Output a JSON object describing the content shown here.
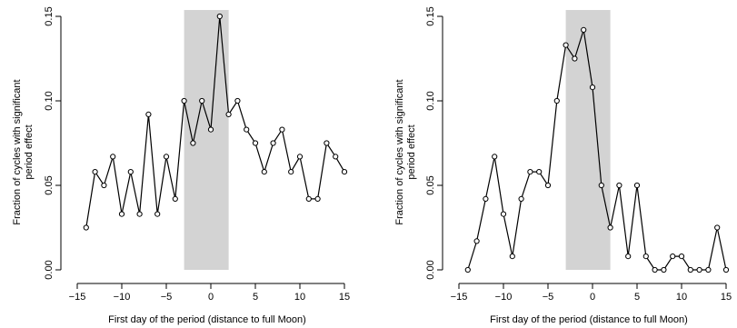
{
  "chart_data": [
    {
      "type": "line",
      "xlabel": "First day of the period (distance to full Moon)",
      "ylabel": [
        "Fraction of cycles with significant",
        "period effect"
      ],
      "xlim": [
        -15,
        15
      ],
      "ylim": [
        0,
        0.15
      ],
      "xticks": [
        -15,
        -10,
        -5,
        0,
        5,
        10,
        15
      ],
      "yticks": [
        0.0,
        0.05,
        0.1,
        0.15
      ],
      "ytick_labels": [
        "0.00",
        "0.05",
        "0.10",
        "0.15"
      ],
      "shaded_region": [
        -3,
        2
      ],
      "x": [
        -14,
        -13,
        -12,
        -11,
        -10,
        -9,
        -8,
        -7,
        -6,
        -5,
        -4,
        -3,
        -2,
        -1,
        0,
        1,
        2,
        3,
        4,
        5,
        6,
        7,
        8,
        9,
        10,
        11,
        12,
        13,
        14,
        15
      ],
      "y": [
        0.025,
        0.058,
        0.05,
        0.067,
        0.033,
        0.058,
        0.033,
        0.092,
        0.033,
        0.067,
        0.042,
        0.1,
        0.075,
        0.1,
        0.083,
        0.15,
        0.092,
        0.1,
        0.083,
        0.075,
        0.058,
        0.075,
        0.083,
        0.058,
        0.067,
        0.042,
        0.042,
        0.075,
        0.067,
        0.058
      ]
    },
    {
      "type": "line",
      "xlabel": "First day of the period (distance to full Moon)",
      "ylabel": [
        "Fraction of cycles with significant",
        "period effect"
      ],
      "xlim": [
        -15,
        15
      ],
      "ylim": [
        0,
        0.15
      ],
      "xticks": [
        -15,
        -10,
        -5,
        0,
        5,
        10,
        15
      ],
      "yticks": [
        0.0,
        0.05,
        0.1,
        0.15
      ],
      "ytick_labels": [
        "0.00",
        "0.05",
        "0.10",
        "0.15"
      ],
      "shaded_region": [
        -3,
        2
      ],
      "x": [
        -14,
        -13,
        -12,
        -11,
        -10,
        -9,
        -8,
        -7,
        -6,
        -5,
        -4,
        -3,
        -2,
        -1,
        0,
        1,
        2,
        3,
        4,
        5,
        6,
        7,
        8,
        9,
        10,
        11,
        12,
        13,
        14,
        15
      ],
      "y": [
        0,
        0.017,
        0.042,
        0.067,
        0.033,
        0.008,
        0.042,
        0.058,
        0.058,
        0.05,
        0.1,
        0.133,
        0.125,
        0.142,
        0.108,
        0.05,
        0.025,
        0.05,
        0.008,
        0.05,
        0.008,
        0,
        0,
        0.008,
        0.008,
        0,
        0,
        0,
        0.025,
        0
      ]
    }
  ]
}
